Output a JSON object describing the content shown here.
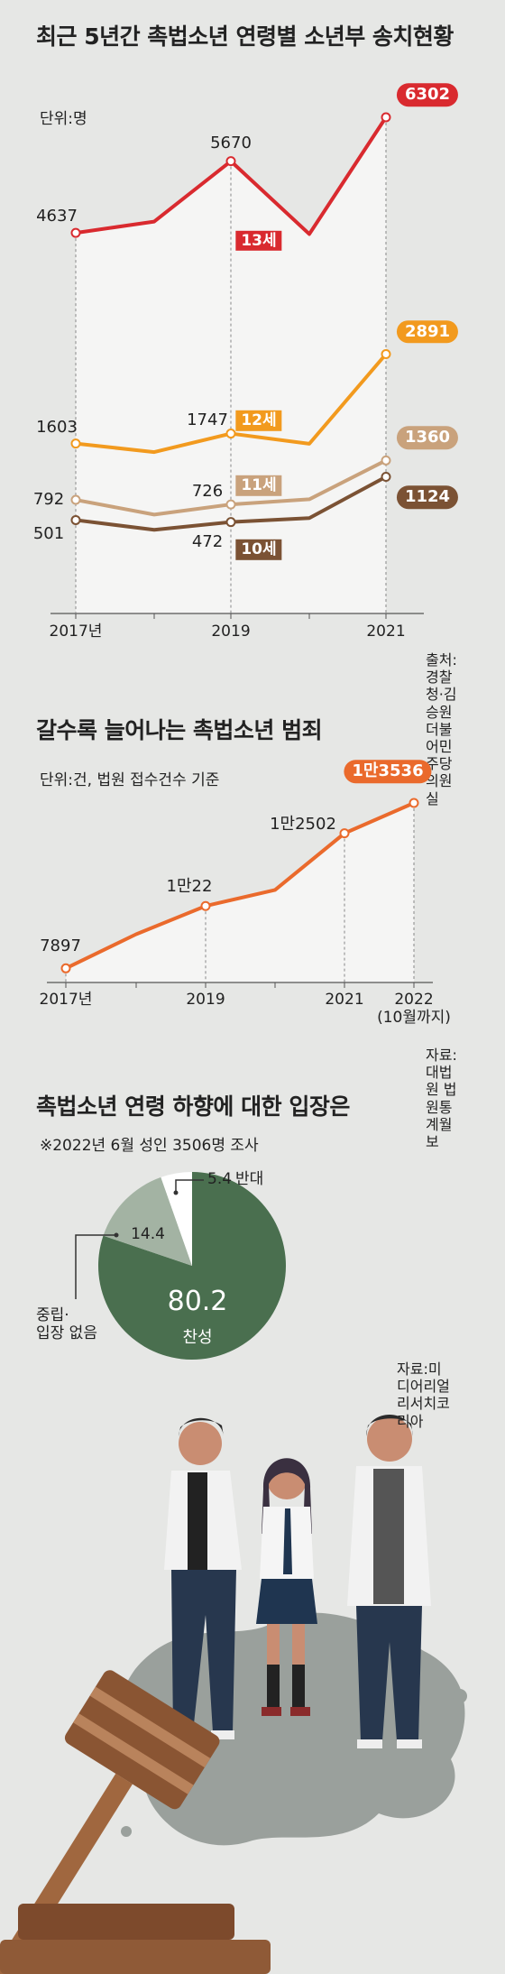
{
  "chart_data": [
    {
      "type": "line",
      "title": "최근 5년간 촉법소년 연령별 소년부 송치현황",
      "unit": "단위:명",
      "source": "출처:경찰청·김승원 더불어민주당 의원실",
      "categories": [
        "2017년",
        null,
        "2019",
        null,
        "2021"
      ],
      "series": [
        {
          "name": "13세",
          "color": "#d92a2f",
          "values": [
            4637,
            4800,
            5670,
            4620,
            6302
          ]
        },
        {
          "name": "12세",
          "color": "#f29a1e",
          "values": [
            1603,
            1480,
            1747,
            1600,
            2891
          ]
        },
        {
          "name": "11세",
          "color": "#c9a27c",
          "values": [
            792,
            580,
            726,
            800,
            1360
          ]
        },
        {
          "name": "10세",
          "color": "#7b5234",
          "values": [
            501,
            360,
            472,
            530,
            1124
          ]
        }
      ]
    },
    {
      "type": "line",
      "title": "갈수록 늘어나는 촉법소년 범죄",
      "unit": "단위:건, 법원 접수건수 기준",
      "source": "자료:대법원 법원통계월보",
      "categories": [
        "2017년",
        null,
        "2019",
        null,
        "2021",
        "2022\n(10월까지)"
      ],
      "series": [
        {
          "color": "#ea6a2c",
          "values": [
            7897,
            9060,
            10022,
            10570,
            12502,
            13536
          ],
          "value_labels": [
            "7897",
            null,
            "1만22",
            null,
            "1만2502",
            "1만3536"
          ]
        }
      ]
    },
    {
      "type": "pie",
      "title": "촉법소년 연령 하향에 대한 입장은",
      "subtitle": "※2022년 6월 성인 3506명 조사",
      "source": "자료:미디어리얼리서치코리아",
      "categories": [
        "찬성",
        "중립·\n입장 없음",
        "반대"
      ],
      "values": [
        80.2,
        14.4,
        5.4
      ],
      "colors": [
        "#4a6f4f",
        "#a3b3a3",
        "#ffffff"
      ]
    }
  ]
}
